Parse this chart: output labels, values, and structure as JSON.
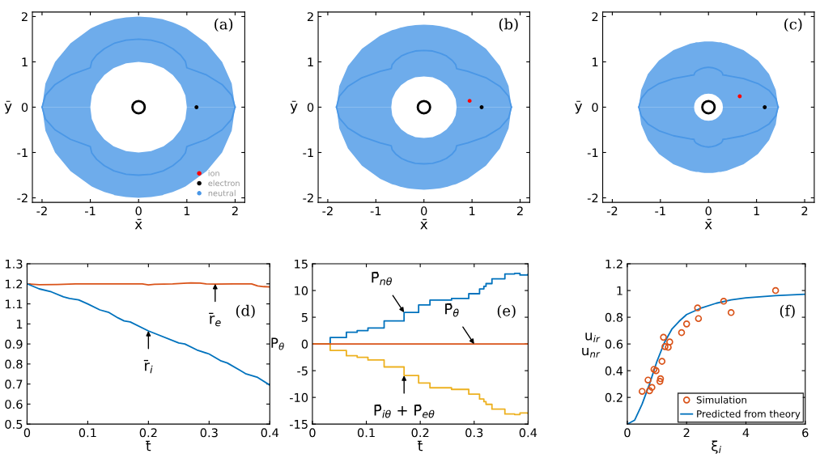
{
  "chart_data": [
    {
      "type": "scatter",
      "xlabel": "x̄",
      "ylabel": "ȳ",
      "xlim": [
        -2.2,
        2.2
      ],
      "ylim": [
        -2.1,
        2.1
      ],
      "xticks": [
        -2,
        -1,
        0,
        1,
        2
      ],
      "yticks": [
        -2,
        -1,
        0,
        1,
        2
      ],
      "legend": "bottom right",
      "annotations": [
        "(a)"
      ],
      "series": [
        {
          "name": "ion",
          "color": "#ff0000"
        },
        {
          "name": "electron",
          "color": "#000000",
          "x": [
            1.2
          ],
          "values": [
            0
          ]
        },
        {
          "name": "neutral",
          "type": "line",
          "color": "#4a97e6",
          "x": [
            -2,
            -1.93,
            -1.73,
            -1.41,
            -1,
            -0.97,
            -0.87,
            -0.71,
            -0.52,
            -0.5,
            -0.26,
            0,
            0.26,
            0.5,
            0.52,
            0.71,
            0.87,
            0.97,
            1,
            1.41,
            1.73,
            1.93,
            2
          ],
          "values": [
            0,
            0.26,
            0.5,
            0.71,
            0.87,
            1.01,
            1.15,
            1.29,
            1.4,
            1.41,
            1.48,
            1.5,
            1.48,
            1.41,
            1.4,
            1.29,
            1.15,
            1.01,
            0.87,
            0.71,
            0.5,
            0.26,
            0
          ],
          "lower": [
            0,
            0,
            0,
            0,
            0,
            0.26,
            0.5,
            0.71,
            0.86,
            0.87,
            0.97,
            1,
            0.97,
            0.87,
            0.86,
            0.71,
            0.5,
            0.26,
            0,
            0,
            0,
            0,
            0
          ],
          "upper": [
            0,
            0.52,
            1,
            1.41,
            1.73,
            1.75,
            1.8,
            1.87,
            1.93,
            1.94,
            1.98,
            2,
            1.98,
            1.94,
            1.93,
            1.87,
            1.8,
            1.75,
            1.73,
            1.41,
            1,
            0.52,
            0
          ]
        },
        {
          "type": "line",
          "color": "#4a97e6",
          "x": [
            -2,
            -1.93,
            -1.73,
            -1.41,
            -1,
            -0.97,
            -0.87,
            -0.71,
            -0.52,
            -0.5,
            -0.26,
            0,
            0.26,
            0.5,
            0.52,
            0.71,
            0.87,
            0.97,
            1,
            1.41,
            1.73,
            1.93,
            2
          ],
          "values": [
            0,
            -0.26,
            -0.5,
            -0.71,
            -0.87,
            -1.01,
            -1.15,
            -1.29,
            -1.4,
            -1.41,
            -1.48,
            -1.5,
            -1.48,
            -1.41,
            -1.4,
            -1.29,
            -1.15,
            -1.01,
            -0.87,
            -0.71,
            -0.5,
            -0.26,
            0
          ],
          "lower": [
            0,
            -0.52,
            -1,
            -1.41,
            -1.73,
            -1.75,
            -1.8,
            -1.87,
            -1.93,
            -1.94,
            -1.98,
            -2,
            -1.98,
            -1.94,
            -1.93,
            -1.87,
            -1.8,
            -1.75,
            -1.73,
            -1.41,
            -1,
            -0.52,
            0
          ],
          "upper": [
            0,
            0,
            0,
            0,
            0,
            -0.26,
            -0.5,
            -0.71,
            -0.86,
            -0.87,
            -0.97,
            -1,
            -0.97,
            -0.87,
            -0.86,
            -0.71,
            -0.5,
            -0.26,
            0,
            0,
            0,
            0,
            0
          ]
        },
        {
          "marker": "circle",
          "color": "#000000",
          "x": [
            0
          ],
          "values": [
            0
          ]
        }
      ]
    },
    {
      "type": "scatter",
      "xlabel": "x̄",
      "ylabel": "ȳ",
      "xlim": [
        -2.2,
        2.2
      ],
      "ylim": [
        -2.1,
        2.1
      ],
      "xticks": [
        -2,
        -1,
        0,
        1,
        2
      ],
      "yticks": [
        -2,
        -1,
        0,
        1,
        2
      ],
      "annotations": [
        "(b)"
      ],
      "series": [
        {
          "color": "#ff0000",
          "x": [
            0.95
          ],
          "values": [
            0.14
          ]
        },
        {
          "color": "#000000",
          "x": [
            1.2
          ],
          "values": [
            0
          ]
        },
        {
          "type": "line",
          "color": "#4a97e6",
          "x": [
            -1.82,
            -1.76,
            -1.58,
            -1.29,
            -0.91,
            -0.68,
            -0.66,
            -0.59,
            -0.48,
            -0.47,
            -0.34,
            -0.18,
            0,
            0.18,
            0.34,
            0.47,
            0.48,
            0.59,
            0.66,
            0.68,
            0.91,
            1.29,
            1.58,
            1.76,
            1.82
          ],
          "values": [
            0,
            0.24,
            0.46,
            0.65,
            0.79,
            0.85,
            0.94,
            1.03,
            1.12,
            1.13,
            1.19,
            1.24,
            1.25,
            1.24,
            1.19,
            1.13,
            1.12,
            1.03,
            0.94,
            0.85,
            0.79,
            0.65,
            0.46,
            0.24,
            0
          ],
          "lower": [
            0,
            0,
            0,
            0,
            0,
            0,
            0.18,
            0.34,
            0.48,
            0.49,
            0.59,
            0.66,
            0.68,
            0.66,
            0.59,
            0.49,
            0.48,
            0.34,
            0.18,
            0,
            0,
            0,
            0,
            0,
            0
          ],
          "upper": [
            0,
            0.47,
            0.91,
            1.29,
            1.58,
            1.69,
            1.7,
            1.72,
            1.76,
            1.76,
            1.79,
            1.81,
            1.82,
            1.81,
            1.79,
            1.76,
            1.76,
            1.72,
            1.7,
            1.69,
            1.58,
            1.29,
            0.91,
            0.47,
            0
          ]
        },
        {
          "type": "line",
          "color": "#4a97e6",
          "x": [
            -1.82,
            -1.76,
            -1.58,
            -1.29,
            -0.91,
            -0.68,
            -0.66,
            -0.59,
            -0.48,
            -0.47,
            -0.34,
            -0.18,
            0,
            0.18,
            0.34,
            0.47,
            0.48,
            0.59,
            0.66,
            0.68,
            0.91,
            1.29,
            1.58,
            1.76,
            1.82
          ],
          "values": [
            0,
            -0.24,
            -0.46,
            -0.65,
            -0.79,
            -0.85,
            -0.94,
            -1.03,
            -1.12,
            -1.13,
            -1.19,
            -1.24,
            -1.25,
            -1.24,
            -1.19,
            -1.13,
            -1.12,
            -1.03,
            -0.94,
            -0.85,
            -0.79,
            -0.65,
            -0.46,
            -0.24,
            0
          ],
          "lower": [
            0,
            -0.47,
            -0.91,
            -1.29,
            -1.58,
            -1.69,
            -1.7,
            -1.72,
            -1.76,
            -1.76,
            -1.79,
            -1.81,
            -1.82,
            -1.81,
            -1.79,
            -1.76,
            -1.76,
            -1.72,
            -1.7,
            -1.69,
            -1.58,
            -1.29,
            -0.91,
            -0.47,
            0
          ],
          "upper": [
            0,
            0,
            0,
            0,
            0,
            0,
            -0.18,
            -0.34,
            -0.48,
            -0.49,
            -0.59,
            -0.66,
            -0.68,
            -0.66,
            -0.59,
            -0.49,
            -0.48,
            -0.34,
            -0.18,
            0,
            0,
            0,
            0,
            0,
            0
          ]
        },
        {
          "marker": "circle",
          "color": "#000000",
          "x": [
            0
          ],
          "values": [
            0
          ]
        }
      ]
    },
    {
      "type": "scatter",
      "xlabel": "x̄",
      "ylabel": "ȳ",
      "xlim": [
        -2.2,
        2.2
      ],
      "ylim": [
        -2.1,
        2.1
      ],
      "xticks": [
        -2,
        -1,
        0,
        1,
        2
      ],
      "yticks": [
        -2,
        -1,
        0,
        1,
        2
      ],
      "annotations": [
        "(c)"
      ],
      "series": [
        {
          "color": "#ff0000",
          "x": [
            0.65
          ],
          "values": [
            0.24
          ]
        },
        {
          "color": "#000000",
          "x": [
            1.17
          ],
          "values": [
            0
          ]
        },
        {
          "type": "line",
          "color": "#4a97e6",
          "x": [
            -1.45,
            -1.4,
            -1.26,
            -1.03,
            -0.73,
            -0.38,
            -0.3,
            -0.29,
            -0.26,
            -0.21,
            -0.15,
            -0.08,
            0,
            0.08,
            0.15,
            0.21,
            0.26,
            0.29,
            0.3,
            0.38,
            0.73,
            1.03,
            1.26,
            1.4,
            1.45
          ],
          "values": [
            0,
            0.19,
            0.37,
            0.52,
            0.63,
            0.7,
            0.71,
            0.75,
            0.79,
            0.82,
            0.85,
            0.87,
            0.88,
            0.87,
            0.85,
            0.82,
            0.79,
            0.75,
            0.71,
            0.7,
            0.63,
            0.52,
            0.37,
            0.19,
            0
          ],
          "lower": [
            0,
            0,
            0,
            0,
            0,
            0,
            0,
            0.08,
            0.15,
            0.21,
            0.26,
            0.29,
            0.3,
            0.29,
            0.26,
            0.21,
            0.15,
            0.08,
            0,
            0,
            0,
            0,
            0,
            0,
            0
          ],
          "upper": [
            0,
            0.38,
            0.73,
            1.03,
            1.26,
            1.4,
            1.42,
            1.42,
            1.43,
            1.43,
            1.44,
            1.45,
            1.45,
            1.45,
            1.44,
            1.43,
            1.43,
            1.42,
            1.42,
            1.4,
            1.26,
            1.03,
            0.73,
            0.38,
            0
          ]
        },
        {
          "type": "line",
          "color": "#4a97e6",
          "x": [
            -1.45,
            -1.4,
            -1.26,
            -1.03,
            -0.73,
            -0.38,
            -0.3,
            -0.29,
            -0.26,
            -0.21,
            -0.15,
            -0.08,
            0,
            0.08,
            0.15,
            0.21,
            0.26,
            0.29,
            0.3,
            0.38,
            0.73,
            1.03,
            1.26,
            1.4,
            1.45
          ],
          "values": [
            0,
            -0.19,
            -0.37,
            -0.52,
            -0.63,
            -0.7,
            -0.71,
            -0.75,
            -0.79,
            -0.82,
            -0.85,
            -0.87,
            -0.88,
            -0.87,
            -0.85,
            -0.82,
            -0.79,
            -0.75,
            -0.71,
            -0.7,
            -0.63,
            -0.52,
            -0.37,
            -0.19,
            0
          ],
          "lower": [
            0,
            -0.38,
            -0.73,
            -1.03,
            -1.26,
            -1.4,
            -1.42,
            -1.42,
            -1.43,
            -1.43,
            -1.44,
            -1.45,
            -1.45,
            -1.45,
            -1.44,
            -1.43,
            -1.43,
            -1.42,
            -1.42,
            -1.4,
            -1.26,
            -1.03,
            -0.73,
            -0.38,
            0
          ],
          "upper": [
            0,
            0,
            0,
            0,
            0,
            0,
            0,
            -0.08,
            -0.15,
            -0.21,
            -0.26,
            -0.29,
            -0.3,
            -0.29,
            -0.26,
            -0.21,
            -0.15,
            -0.08,
            0,
            0,
            0,
            0,
            0,
            0,
            0
          ]
        },
        {
          "marker": "circle",
          "color": "#000000",
          "x": [
            0
          ],
          "values": [
            0
          ]
        }
      ]
    },
    {
      "type": "line",
      "xlabel": "t̄",
      "xlim": [
        0,
        0.4
      ],
      "ylim": [
        0.5,
        1.3
      ],
      "xticks": [
        0,
        0.1,
        0.2,
        0.3,
        0.4
      ],
      "yticks": [
        0.5,
        0.6,
        0.7,
        0.8,
        0.9,
        1,
        1.1,
        1.2,
        1.3
      ],
      "annotations": [
        "(d)",
        {
          "text": "r̄$_{e}$",
          "x": 0.31,
          "y": 1.2
        },
        {
          "text": "r̄$_{i}$",
          "x": 0.2,
          "y": 0.965
        }
      ],
      "series": [
        {
          "color": "#d95319",
          "x": [
            0,
            0.02,
            0.05,
            0.08,
            0.12,
            0.16,
            0.19,
            0.2,
            0.21,
            0.24,
            0.27,
            0.285,
            0.295,
            0.31,
            0.34,
            0.37,
            0.38,
            0.39,
            0.4
          ],
          "values": [
            1.2,
            1.196,
            1.197,
            1.2,
            1.2,
            1.2,
            1.2,
            1.195,
            1.198,
            1.2,
            1.205,
            1.204,
            1.2,
            1.199,
            1.2,
            1.2,
            1.19,
            1.186,
            1.185
          ]
        },
        {
          "color": "#0072bd",
          "x": [
            0,
            0.02,
            0.04,
            0.06,
            0.07,
            0.085,
            0.1,
            0.12,
            0.135,
            0.15,
            0.16,
            0.17,
            0.2,
            0.25,
            0.26,
            0.28,
            0.3,
            0.32,
            0.33,
            0.35,
            0.36,
            0.38,
            0.4
          ],
          "values": [
            1.2,
            1.175,
            1.16,
            1.135,
            1.127,
            1.12,
            1.1,
            1.07,
            1.057,
            1.03,
            1.015,
            1.01,
            0.965,
            0.905,
            0.9,
            0.87,
            0.85,
            0.815,
            0.805,
            0.77,
            0.752,
            0.733,
            0.695
          ]
        }
      ]
    },
    {
      "type": "step",
      "xlabel": "t̄",
      "ylabel": "P$_{θ}$",
      "xlim": [
        0,
        0.4
      ],
      "ylim": [
        -15,
        15
      ],
      "xticks": [
        0,
        0.1,
        0.2,
        0.3,
        0.4
      ],
      "yticks": [
        -15,
        -10,
        -5,
        0,
        5,
        10,
        15
      ],
      "annotations": [
        "(e)",
        {
          "text": "P̄$_{nθ}$",
          "x": 0.17,
          "y": 5.9
        },
        {
          "text": "P̄$_{θ}$",
          "x": 0.3,
          "y": 0
        },
        {
          "text": "P̄$_{iθ}$ + P̄$_{eθ}$",
          "x": 0.17,
          "y": -5.9
        }
      ],
      "series": [
        {
          "color": "#0072bd",
          "x": [
            0,
            0.033,
            0.063,
            0.083,
            0.103,
            0.133,
            0.17,
            0.197,
            0.218,
            0.258,
            0.29,
            0.31,
            0.318,
            0.322,
            0.333,
            0.357,
            0.375,
            0.385,
            0.4
          ],
          "values": [
            0,
            1.2,
            2.2,
            2.5,
            3.0,
            4.3,
            5.9,
            7.3,
            8.2,
            8.5,
            9.4,
            10.3,
            10.8,
            11.3,
            12.2,
            13.1,
            13.2,
            12.9,
            13.0
          ]
        },
        {
          "color": "#edb120",
          "x": [
            0,
            0.033,
            0.063,
            0.083,
            0.103,
            0.133,
            0.17,
            0.197,
            0.218,
            0.258,
            0.29,
            0.31,
            0.318,
            0.322,
            0.333,
            0.357,
            0.375,
            0.385,
            0.4
          ],
          "values": [
            0,
            -1.2,
            -2.2,
            -2.5,
            -3.0,
            -4.3,
            -5.9,
            -7.3,
            -8.2,
            -8.5,
            -9.4,
            -10.3,
            -10.8,
            -11.3,
            -12.2,
            -13.1,
            -13.2,
            -12.9,
            -13.0
          ]
        },
        {
          "color": "#d95319",
          "x": [
            0,
            0.4
          ],
          "values": [
            0,
            0
          ]
        }
      ]
    },
    {
      "type": "scatter",
      "xlabel": "ξ$_{i}$",
      "ylabel": "u$_{ir}$\nu$_{nr}$",
      "xlim": [
        0,
        6
      ],
      "ylim": [
        0,
        1.2
      ],
      "xticks": [
        0,
        2,
        4,
        6
      ],
      "yticks": [
        0.2,
        0.4,
        0.6,
        0.8,
        1,
        1.2
      ],
      "legend": "bottom right",
      "annotations": [
        "(f)"
      ],
      "series": [
        {
          "name": "Simulation",
          "marker": "circle",
          "color": "#d95319",
          "x": [
            0.5,
            0.7,
            0.75,
            0.83,
            0.9,
            0.97,
            1.1,
            1.12,
            1.17,
            1.22,
            1.27,
            1.38,
            1.43,
            1.83,
            2.0,
            2.37,
            2.4,
            3.25,
            3.5,
            5.0
          ],
          "values": [
            0.245,
            0.33,
            0.25,
            0.275,
            0.41,
            0.4,
            0.32,
            0.34,
            0.47,
            0.65,
            0.58,
            0.575,
            0.615,
            0.685,
            0.75,
            0.87,
            0.79,
            0.92,
            0.835,
            1.0
          ]
        },
        {
          "name": "Predicted from theory",
          "type": "line",
          "color": "#0072bd",
          "x": [
            0,
            0.25,
            0.5,
            0.75,
            1.0,
            1.25,
            1.5,
            1.75,
            2,
            2.5,
            3,
            3.5,
            4,
            5,
            6
          ],
          "values": [
            0,
            0.03,
            0.15,
            0.3,
            0.47,
            0.61,
            0.71,
            0.77,
            0.82,
            0.87,
            0.905,
            0.93,
            0.945,
            0.962,
            0.972
          ]
        }
      ]
    }
  ]
}
